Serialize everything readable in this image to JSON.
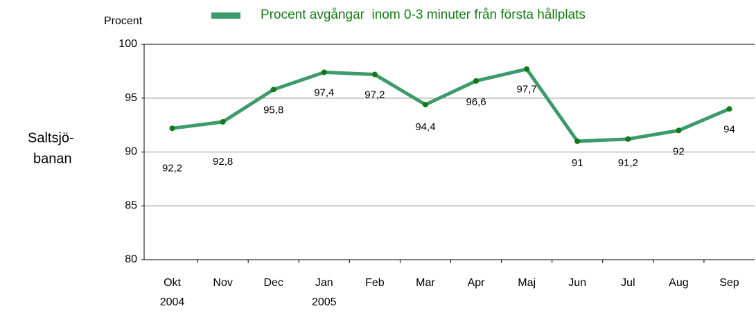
{
  "chart_data": {
    "type": "line",
    "y_axis_label": "Procent",
    "row_label": [
      "Saltsjö-",
      "banan"
    ],
    "categories": [
      "Okt 2004",
      "Nov",
      "Dec",
      "Jan 2005",
      "Feb",
      "Mar",
      "Apr",
      "Maj",
      "Jun",
      "Jul",
      "Aug",
      "Sep"
    ],
    "series": [
      {
        "name": "Procent avgångar  inom 0-3 minuter från första hållplats",
        "color": "#3d9a6b",
        "marker_color": "#127a12",
        "values": [
          92.2,
          92.8,
          95.8,
          97.4,
          97.2,
          94.4,
          96.6,
          97.7,
          91,
          91.2,
          92,
          94
        ],
        "value_labels": [
          "92,2",
          "92,8",
          "95,8",
          "97,4",
          "97,2",
          "94,4",
          "96,6",
          "97,7",
          "91",
          "91,2",
          "92",
          "94"
        ]
      }
    ],
    "ylim": [
      80,
      100
    ],
    "yticks": [
      80,
      85,
      90,
      95,
      100
    ],
    "grid": true,
    "legend": "top"
  }
}
